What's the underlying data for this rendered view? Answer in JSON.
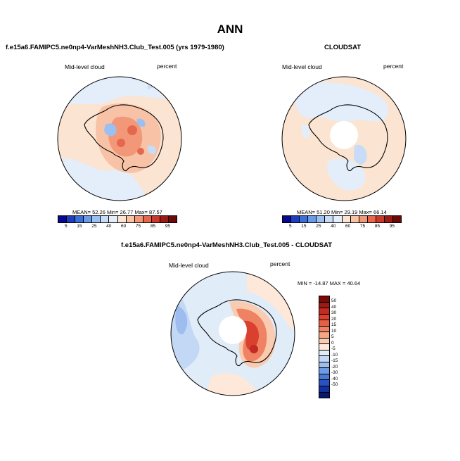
{
  "main_title": "ANN",
  "panels": {
    "test": {
      "title": "f.e15a6.FAMIPC5.ne0np4-VarMeshNH3.Club_Test.005 (yrs 1979-1980)",
      "variable": "Mid-level cloud",
      "units": "percent",
      "stats": "MEAN= 52.26 Min= 26.77 Max= 87.57"
    },
    "obs": {
      "title": "CLOUDSAT",
      "variable": "Mid-level cloud",
      "units": "percent",
      "stats": "MEAN= 51.20 Min= 29.19 Max= 66.14"
    },
    "diff": {
      "title": "f.e15a6.FAMIPC5.ne0np4-VarMeshNH3.Club_Test.005 - CLOUDSAT",
      "variable": "Mid-level cloud",
      "units": "percent",
      "stats": "MIN = -14.87 MAX = 40.64"
    }
  },
  "colorbar_abs": {
    "labels": [
      "5",
      "15",
      "25",
      "40",
      "60",
      "75",
      "85",
      "95"
    ],
    "colors": [
      "#08088c",
      "#1f3dbf",
      "#3d6fd9",
      "#6b9ae8",
      "#9cbff2",
      "#c8dbf7",
      "#e4eefa",
      "#fbe4d1",
      "#f7c2a6",
      "#f29878",
      "#e5674d",
      "#c93a2c",
      "#9c1a14",
      "#6b0a08"
    ]
  },
  "colorbar_diff": {
    "labels": [
      "50",
      "40",
      "30",
      "20",
      "15",
      "10",
      "5",
      "0",
      "-5",
      "-10",
      "-15",
      "-20",
      "-30",
      "-40",
      "-50"
    ],
    "colors": [
      "#7a0a08",
      "#9c1a14",
      "#c22a22",
      "#d9412e",
      "#e65f45",
      "#ef8263",
      "#f4a685",
      "#f9cbb0",
      "#fde8d9",
      "#e1ecf9",
      "#c3d8f4",
      "#9cbdee",
      "#6e9be4",
      "#4a78d6",
      "#2a51c2",
      "#13309e",
      "#061970"
    ]
  }
}
